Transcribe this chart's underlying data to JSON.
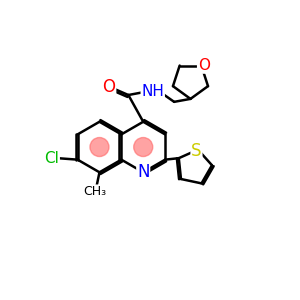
{
  "background": "#ffffff",
  "bond_color": "#000000",
  "bond_width": 1.8,
  "font_size": 11,
  "colors": {
    "N": "#0000ff",
    "O": "#ff0000",
    "S": "#cccc00",
    "Cl": "#00bb00",
    "pink": "#ff6666"
  }
}
